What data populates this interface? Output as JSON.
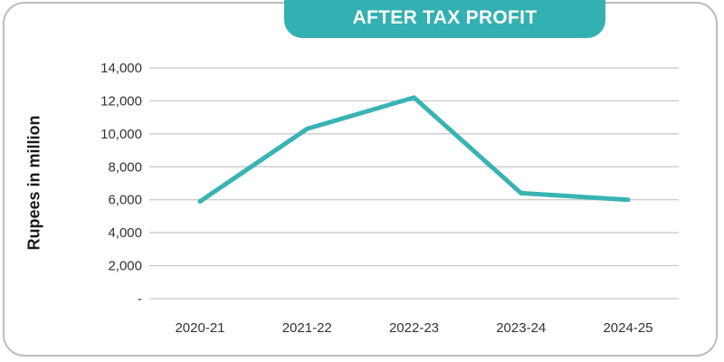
{
  "chart_data": {
    "type": "line",
    "title": "AFTER TAX PROFIT",
    "xlabel": "",
    "ylabel": "Rupees in million",
    "categories": [
      "2020-21",
      "2021-22",
      "2022-23",
      "2023-24",
      "2024-25"
    ],
    "series": [
      {
        "values": [
          5900,
          10300,
          12200,
          6400,
          6000
        ]
      }
    ],
    "ylim": [
      0,
      14000
    ],
    "yticks": [
      0,
      2000,
      4000,
      6000,
      8000,
      10000,
      12000,
      14000
    ],
    "ytick_labels": [
      "-",
      "2,000",
      "4,000",
      "6,000",
      "8,000",
      "10,000",
      "12,000",
      "14,000"
    ],
    "grid": "horizontal",
    "line_color": "#3ab3b4",
    "grid_color": "#c6c6c6",
    "title_bg_color": "#33b0b1"
  }
}
